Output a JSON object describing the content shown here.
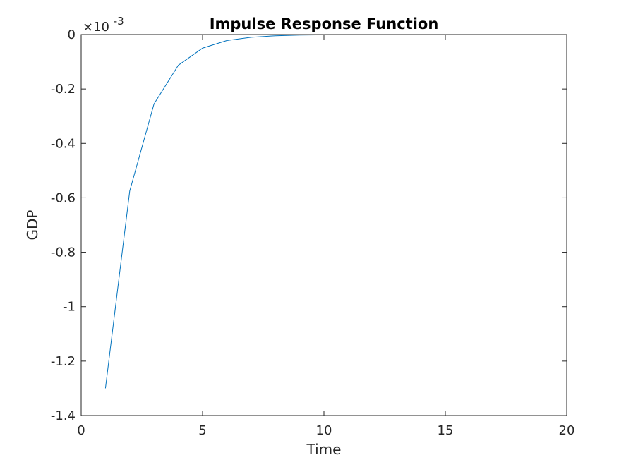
{
  "chart_data": {
    "type": "line",
    "title": "Impulse Response Function",
    "xlabel": "Time",
    "ylabel": "GDP",
    "y_exponent_label": "×10",
    "y_exponent_power": "-3",
    "y_multiplier": 0.001,
    "xlim": [
      0,
      20
    ],
    "ylim": [
      -1.4,
      0
    ],
    "xticks": [
      0,
      5,
      10,
      15,
      20
    ],
    "xtick_labels": [
      "0",
      "5",
      "10",
      "15",
      "20"
    ],
    "yticks": [
      0,
      -0.2,
      -0.4,
      -0.6,
      -0.8,
      -1,
      -1.2,
      -1.4
    ],
    "ytick_labels": [
      "0",
      "-0.2",
      "-0.4",
      "-0.6",
      "-0.8",
      "-1",
      "-1.2",
      "-1.4"
    ],
    "grid": false,
    "series": [
      {
        "color": "#0072bd",
        "x": [
          1,
          2,
          3,
          4,
          5,
          6,
          7,
          8,
          9,
          10,
          11,
          12,
          13,
          14,
          15,
          16,
          17,
          18,
          19,
          20
        ],
        "y": [
          -1.3,
          -0.575,
          -0.255,
          -0.113,
          -0.05,
          -0.022,
          -0.01,
          -0.0044,
          -0.002,
          -0.0009,
          -0.0004,
          -0.0002,
          -0.0001,
          0,
          0,
          0,
          0,
          0,
          0,
          0
        ]
      }
    ]
  }
}
